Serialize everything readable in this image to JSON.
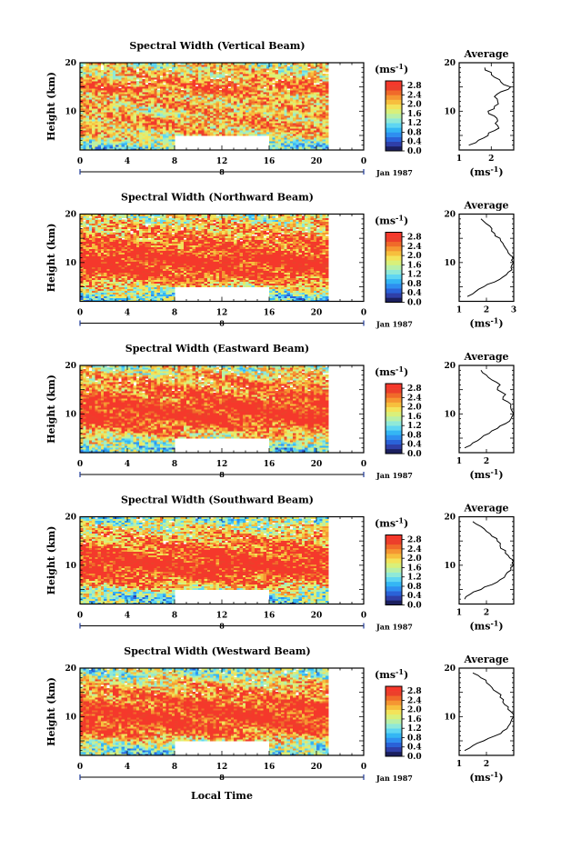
{
  "figure": {
    "xlabel": "Local Time",
    "date_label": "Jan 1987",
    "day_label": "8",
    "avg_title": "Average",
    "cb_unit": "(ms",
    "cb_unit_exp": "-1",
    "cb_unit_close": ")",
    "avg_unit": "(ms",
    "avg_unit_exp": "-1",
    "avg_unit_close": ")"
  },
  "chart_data": [
    {
      "type": "heatmap",
      "title": "Spectral Width (Vertical Beam)",
      "xlabel": "Local Time",
      "ylabel": "Height (km)",
      "xticks": [
        "0",
        "4",
        "8",
        "12",
        "16",
        "20",
        "0"
      ],
      "yticks": [
        "20",
        "10"
      ],
      "xlim": [
        0,
        24
      ],
      "ylim": [
        2,
        20
      ],
      "data_xlim": [
        0,
        21
      ],
      "gap": {
        "x": [
          8,
          16
        ],
        "y": [
          2,
          5
        ]
      },
      "colorbar_ticks": [
        "0.0",
        "0.4",
        "0.8",
        "1.2",
        "1.6",
        "2.0",
        "2.4",
        "2.8"
      ],
      "colorbar_range": [
        0,
        3.0
      ],
      "profile": {
        "height": [
          3,
          4,
          5,
          6,
          7,
          8,
          9,
          10,
          11,
          12,
          13,
          14,
          15,
          16,
          17,
          18,
          19
        ],
        "value": [
          1.3,
          1.6,
          1.9,
          2.1,
          2.2,
          2.2,
          2.1,
          1.9,
          2.1,
          2.2,
          2.1,
          2.3,
          2.6,
          2.3,
          2.1,
          2.0,
          1.8
        ]
      },
      "profile_xticks": [
        "1",
        "2"
      ],
      "profile_xlim": [
        1,
        2.7
      ]
    },
    {
      "type": "heatmap",
      "title": "Spectral Width (Northward Beam)",
      "xlabel": "Local Time",
      "ylabel": "Height (km)",
      "xticks": [
        "0",
        "4",
        "8",
        "12",
        "16",
        "20",
        "0"
      ],
      "yticks": [
        "20",
        "10"
      ],
      "xlim": [
        0,
        24
      ],
      "ylim": [
        2,
        20
      ],
      "data_xlim": [
        0,
        21
      ],
      "gap": {
        "x": [
          8,
          16
        ],
        "y": [
          2,
          5
        ]
      },
      "colorbar_ticks": [
        "0.0",
        "0.4",
        "0.8",
        "1.2",
        "1.6",
        "2.0",
        "2.4",
        "2.8"
      ],
      "colorbar_range": [
        0,
        3.0
      ],
      "profile": {
        "height": [
          3,
          4,
          5,
          6,
          7,
          8,
          9,
          10,
          11,
          12,
          13,
          14,
          15,
          16,
          17,
          18,
          19
        ],
        "value": [
          1.3,
          1.6,
          1.9,
          2.3,
          2.6,
          2.8,
          2.9,
          3.0,
          3.0,
          2.8,
          2.7,
          2.6,
          2.5,
          2.3,
          2.2,
          2.0,
          1.8
        ]
      },
      "profile_xticks": [
        "1",
        "2",
        "3"
      ],
      "profile_xlim": [
        1,
        3
      ]
    },
    {
      "type": "heatmap",
      "title": "Spectral Width (Eastward Beam)",
      "xlabel": "Local Time",
      "ylabel": "Height (km)",
      "xticks": [
        "0",
        "4",
        "8",
        "12",
        "16",
        "20",
        "0"
      ],
      "yticks": [
        "20",
        "10"
      ],
      "xlim": [
        0,
        24
      ],
      "ylim": [
        2,
        20
      ],
      "data_xlim": [
        0,
        21
      ],
      "gap": {
        "x": [
          8,
          16
        ],
        "y": [
          2,
          5
        ]
      },
      "colorbar_ticks": [
        "0.0",
        "0.4",
        "0.8",
        "1.2",
        "1.6",
        "2.0",
        "2.4",
        "2.8"
      ],
      "colorbar_range": [
        0,
        3.0
      ],
      "profile": {
        "height": [
          3,
          4,
          5,
          6,
          7,
          8,
          9,
          10,
          11,
          12,
          13,
          14,
          15,
          16,
          17,
          18,
          19
        ],
        "value": [
          1.2,
          1.5,
          1.8,
          2.1,
          2.4,
          2.7,
          2.9,
          3.0,
          2.9,
          2.9,
          2.6,
          2.7,
          2.4,
          2.5,
          2.2,
          2.0,
          1.8
        ]
      },
      "profile_xticks": [
        "1",
        "2"
      ],
      "profile_xlim": [
        1,
        3
      ]
    },
    {
      "type": "heatmap",
      "title": "Spectral Width (Southward Beam)",
      "xlabel": "Local Time",
      "ylabel": "Height (km)",
      "xticks": [
        "0",
        "4",
        "8",
        "12",
        "16",
        "20",
        "0"
      ],
      "yticks": [
        "20",
        "10"
      ],
      "xlim": [
        0,
        24
      ],
      "ylim": [
        2,
        20
      ],
      "data_xlim": [
        0,
        21
      ],
      "gap": {
        "x": [
          8,
          16
        ],
        "y": [
          2,
          5
        ]
      },
      "colorbar_ticks": [
        "0.0",
        "0.4",
        "0.8",
        "1.2",
        "1.6",
        "2.0",
        "2.4",
        "2.8"
      ],
      "colorbar_range": [
        0,
        3.0
      ],
      "profile": {
        "height": [
          3,
          4,
          5,
          6,
          7,
          8,
          9,
          10,
          11,
          12,
          13,
          14,
          15,
          16,
          17,
          18,
          19
        ],
        "value": [
          1.2,
          1.4,
          1.8,
          2.2,
          2.5,
          2.7,
          2.9,
          3.0,
          3.0,
          2.8,
          2.7,
          2.5,
          2.4,
          2.2,
          2.0,
          1.8,
          1.5
        ]
      },
      "profile_xticks": [
        "1",
        "2"
      ],
      "profile_xlim": [
        1,
        3
      ]
    },
    {
      "type": "heatmap",
      "title": "Spectral Width (Westward Beam)",
      "xlabel": "Local Time",
      "ylabel": "Height (km)",
      "xticks": [
        "0",
        "4",
        "8",
        "12",
        "16",
        "20",
        "0"
      ],
      "yticks": [
        "20",
        "10"
      ],
      "xlim": [
        0,
        24
      ],
      "ylim": [
        2,
        20
      ],
      "data_xlim": [
        0,
        21
      ],
      "gap": {
        "x": [
          8,
          16
        ],
        "y": [
          2,
          5
        ]
      },
      "colorbar_ticks": [
        "0.0",
        "0.4",
        "0.8",
        "1.2",
        "1.6",
        "2.0",
        "2.4",
        "2.8"
      ],
      "colorbar_range": [
        0,
        3.0
      ],
      "profile": {
        "height": [
          3,
          4,
          5,
          6,
          7,
          8,
          9,
          10,
          11,
          12,
          13,
          14,
          15,
          16,
          17,
          18,
          19
        ],
        "value": [
          1.2,
          1.5,
          1.9,
          2.3,
          2.6,
          2.8,
          2.9,
          3.0,
          2.9,
          2.8,
          2.6,
          2.5,
          2.4,
          2.2,
          2.0,
          1.8,
          1.5
        ]
      },
      "profile_xticks": [
        "1",
        "2"
      ],
      "profile_xlim": [
        1,
        3
      ]
    }
  ]
}
